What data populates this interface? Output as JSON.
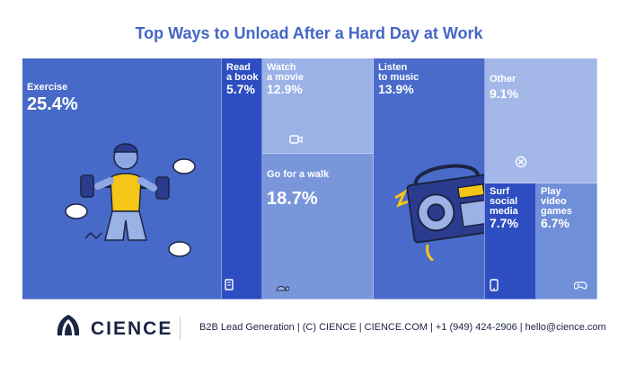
{
  "chart_data": {
    "type": "treemap",
    "title": "Top Ways to Unload After a Hard Day at Work",
    "unit": "%",
    "items": [
      {
        "label": "Exercise",
        "value": 25.4,
        "color": "#4769c7"
      },
      {
        "label": "Read\na book",
        "value": 5.7,
        "color": "#2d4dc0"
      },
      {
        "label": "Watch\na movie",
        "value": 12.9,
        "color": "#9bb2e7"
      },
      {
        "label": "Go for a walk",
        "value": 18.7,
        "color": "#7a96db"
      },
      {
        "label": "Listen\nto music",
        "value": 13.9,
        "color": "#4a6bc9"
      },
      {
        "label": "Other",
        "value": 9.1,
        "color": "#a3b8e9"
      },
      {
        "label": "Surf\nsocial\nmedia",
        "value": 7.7,
        "color": "#2d4dc0"
      },
      {
        "label": "Play\nvideo\ngames",
        "value": 6.7,
        "color": "#6f8fd8"
      }
    ]
  },
  "footer": {
    "brand": "CIENCE",
    "info": "B2B Lead Generation | (C) CIENCE | CIENCE.COM | +1 (949) 424-2906 | hello@cience.com"
  }
}
